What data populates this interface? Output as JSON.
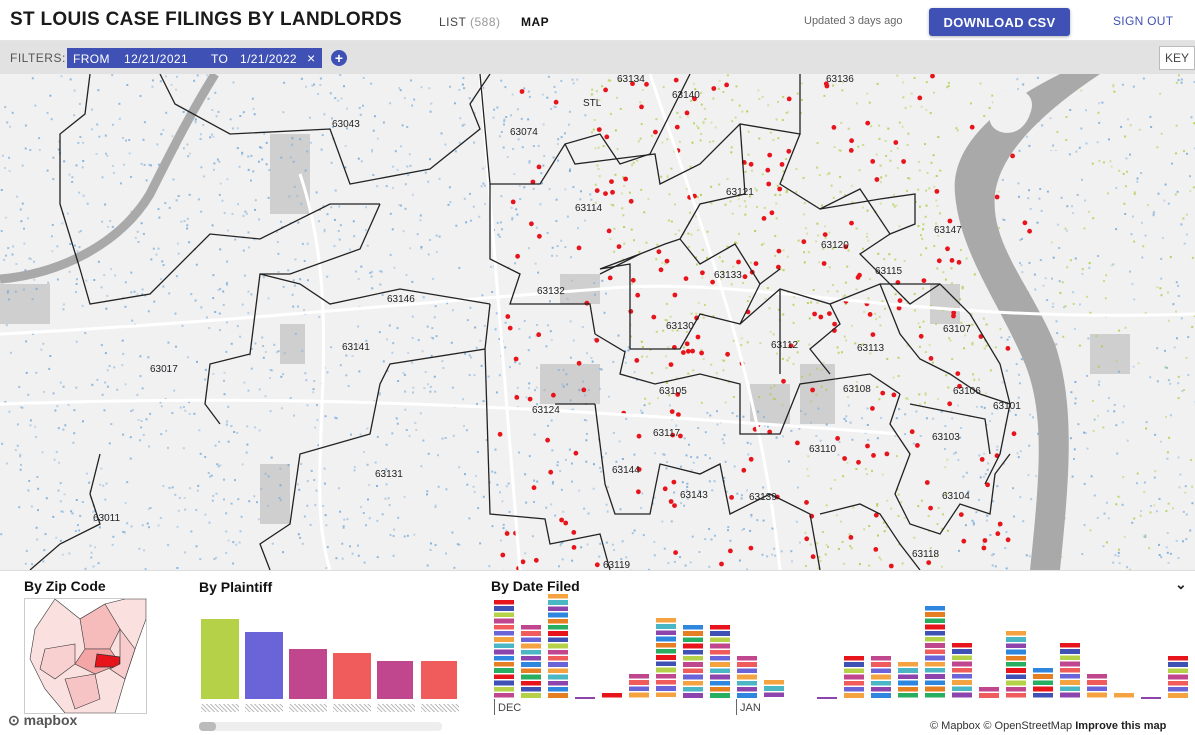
{
  "header": {
    "title": "ST LOUIS CASE FILINGS BY LANDLORDS",
    "nav": {
      "list_label": "LIST",
      "list_count": "(588)",
      "map_label": "MAP"
    },
    "updated": "Updated 3 days ago",
    "download_label": "DOWNLOAD CSV",
    "signout_label": "SIGN OUT"
  },
  "filters": {
    "label": "FILTERS:",
    "chip": {
      "from_label": "FROM",
      "from_value": "12/21/2021",
      "to_label": "TO",
      "to_value": "1/21/2022",
      "remove": "×"
    },
    "add": "+",
    "key_label": "KEY"
  },
  "map": {
    "zip_labels": [
      "63134",
      "63140",
      "63136",
      "63043",
      "63074",
      "STL",
      "63114",
      "63121",
      "63120",
      "63147",
      "63133",
      "63115",
      "63132",
      "63146",
      "63130",
      "63107",
      "63141",
      "63112",
      "63113",
      "63017",
      "63106",
      "63105",
      "63108",
      "63101",
      "63124",
      "63117",
      "63103",
      "63110",
      "63131",
      "63144",
      "63143",
      "63139",
      "63104",
      "63011",
      "63118",
      "63119"
    ],
    "colors": {
      "green": "#a8cc3c",
      "blue": "#6fa6d8",
      "red": "#e8141b",
      "boundary": "#222222",
      "river": "#a9a9a9"
    }
  },
  "panel": {
    "zip_title": "By Zip Code",
    "plaintiff_title": "By Plaintiff",
    "date_title": "By Date Filed",
    "collapse_icon": "⌄",
    "plaintiffs": {
      "values": [
        80,
        67,
        50,
        46,
        38,
        38
      ],
      "colors": [
        "#b5d148",
        "#6b64d8",
        "#c0468e",
        "#f05b5b",
        "#c0468e",
        "#f05b5b"
      ]
    },
    "date_axis": {
      "dec": "DEC",
      "jan": "JAN"
    },
    "daily_values": [
      16,
      12,
      17,
      0,
      1,
      4,
      13,
      12,
      12,
      7,
      3,
      0,
      7,
      7,
      6,
      15,
      9,
      2,
      11,
      5,
      9,
      4,
      1,
      0,
      7
    ],
    "mapbox_label": "mapbox",
    "attribution": {
      "mapbox": "© Mapbox",
      "osm": "© OpenStreetMap",
      "improve": "Improve this map"
    }
  }
}
